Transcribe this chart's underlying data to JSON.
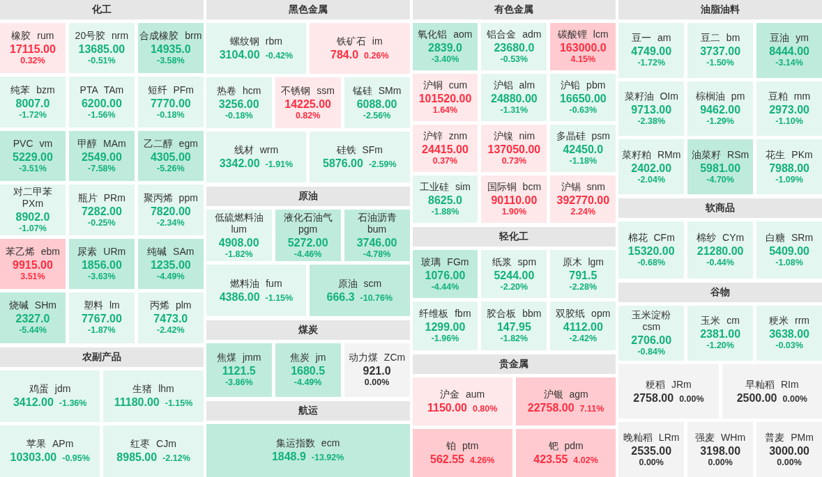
{
  "chart_data": [
    {
      "type": "other",
      "title": "化工",
      "categories": [
        "橡胶 rum",
        "20号胶 nrm",
        "合成橡胶 brm",
        "纯苯 bzm",
        "PTA TAm",
        "短纤 PFm",
        "PVC vm",
        "甲醇 MAm",
        "乙二醇 egm",
        "对二甲苯 PXm",
        "瓶片 PRm",
        "聚丙烯 ppm",
        "苯乙烯 ebm",
        "尿素 URm",
        "纯碱 SAm",
        "烧碱 SHm",
        "塑料 lm",
        "丙烯 plm"
      ],
      "series": [
        {
          "values": [
            17115,
            13685,
            14935,
            8007,
            6200,
            7770,
            5229,
            2549,
            4305,
            8902,
            7282,
            7820,
            9915,
            1856,
            1235,
            2327,
            7767,
            7473
          ],
          "value_labels": [
            "17115.00",
            "13685.00",
            "14935.0",
            "8007.0",
            "6200.00",
            "7770.00",
            "5229.00",
            "2549.00",
            "4305.00",
            "8902.0",
            "7282.00",
            "7820.00",
            "9915.00",
            "1856.00",
            "1235.00",
            "2327.0",
            "7767.00",
            "7473.0"
          ],
          "colors": [
            "#ffe8ea",
            "#e3f6ef",
            "#bfebdc",
            "#e3f6ef",
            "#e3f6ef",
            "#e3f6ef",
            "#bfebdc",
            "#bfebdc",
            "#bfebdc",
            "#e3f6ef",
            "#e3f6ef",
            "#e3f6ef",
            "#ffcbd0",
            "#bfebdc",
            "#bfebdc",
            "#bfebdc",
            "#e3f6ef",
            "#e3f6ef"
          ]
        },
        {
          "values": [
            0.32,
            -0.51,
            -3.58,
            -1.72,
            -1.56,
            -0.18,
            -3.51,
            -7.58,
            -5.26,
            -1.07,
            -0.25,
            -2.34,
            3.51,
            -3.63,
            -4.49,
            -5.44,
            -1.87,
            -2.42
          ],
          "value_labels": [
            "0.32%",
            "-0.51%",
            "-3.58%",
            "-1.72%",
            "-1.56%",
            "-0.18%",
            "-3.51%",
            "-7.58%",
            "-5.26%",
            "-1.07%",
            "-0.25%",
            "-2.34%",
            "3.51%",
            "-3.63%",
            "-4.49%",
            "-5.44%",
            "-1.87%",
            "-2.42%"
          ]
        }
      ]
    },
    {
      "type": "other",
      "title": "农副产品",
      "categories": [
        "鸡蛋 jdm",
        "生猪 lhm",
        "苹果 APm",
        "红枣 CJm"
      ],
      "series": [
        {
          "values": [
            3412,
            11180,
            10303,
            8985
          ],
          "value_labels": [
            "3412.00",
            "11180.00",
            "10303.00",
            "8985.00"
          ],
          "colors": [
            "#e3f6ef",
            "#e3f6ef",
            "#e3f6ef",
            "#e3f6ef"
          ]
        },
        {
          "values": [
            -1.36,
            -1.15,
            -0.95,
            -2.12
          ],
          "value_labels": [
            "-1.36%",
            "-1.15%",
            "-0.95%",
            "-2.12%"
          ]
        }
      ]
    },
    {
      "type": "other",
      "title": "黑色金属",
      "categories": [
        "螺纹钢 rbm",
        "铁矿石 im",
        "热卷 hcm",
        "不锈钢 ssm",
        "锰硅 SMm",
        "线材 wrm",
        "硅铁 SFm"
      ],
      "series": [
        {
          "values": [
            3104,
            784,
            3256,
            14225,
            6088,
            3342,
            5876
          ],
          "value_labels": [
            "3104.00",
            "784.0",
            "3256.00",
            "14225.00",
            "6088.00",
            "3342.00",
            "5876.00"
          ],
          "colors": [
            "#e3f6ef",
            "#ffe8ea",
            "#e3f6ef",
            "#ffe8ea",
            "#e3f6ef",
            "#e3f6ef",
            "#e3f6ef"
          ]
        },
        {
          "values": [
            -0.42,
            0.26,
            -0.18,
            0.82,
            -2.56,
            -1.91,
            -2.59
          ],
          "value_labels": [
            "-0.42%",
            "0.26%",
            "-0.18%",
            "0.82%",
            "-2.56%",
            "-1.91%",
            "-2.59%"
          ]
        }
      ]
    },
    {
      "type": "other",
      "title": "原油",
      "categories": [
        "低硫燃料油 lum",
        "液化石油气 pgm",
        "石油沥青 bum",
        "燃料油 fum",
        "原油 scm"
      ],
      "series": [
        {
          "values": [
            4908,
            5272,
            3746,
            4386,
            666.3
          ],
          "value_labels": [
            "4908.00",
            "5272.00",
            "3746.00",
            "4386.00",
            "666.3"
          ],
          "colors": [
            "#e3f6ef",
            "#bfebdc",
            "#bfebdc",
            "#e3f6ef",
            "#bfebdc"
          ]
        },
        {
          "values": [
            -1.82,
            -4.46,
            -4.78,
            -1.15,
            -10.76
          ],
          "value_labels": [
            "-1.82%",
            "-4.46%",
            "-4.78%",
            "-1.15%",
            "-10.76%"
          ]
        }
      ]
    },
    {
      "type": "other",
      "title": "煤炭",
      "categories": [
        "焦煤 jmm",
        "焦炭 jm",
        "动力煤 ZCm"
      ],
      "series": [
        {
          "values": [
            1121.5,
            1680.5,
            921
          ],
          "value_labels": [
            "1121.5",
            "1680.5",
            "921.0"
          ],
          "colors": [
            "#bfebdc",
            "#bfebdc",
            "#f3f3f3"
          ]
        },
        {
          "values": [
            -3.86,
            -4.49,
            0
          ],
          "value_labels": [
            "-3.86%",
            "-4.49%",
            "0.00%"
          ]
        }
      ]
    },
    {
      "type": "other",
      "title": "航运",
      "categories": [
        "集运指数 ecm"
      ],
      "series": [
        {
          "values": [
            1848.9
          ],
          "value_labels": [
            "1848.9"
          ],
          "colors": [
            "#bfebdc"
          ]
        },
        {
          "values": [
            -13.92
          ],
          "value_labels": [
            "-13.92%"
          ]
        }
      ]
    },
    {
      "type": "other",
      "title": "有色金属",
      "categories": [
        "氧化铝 aom",
        "铝合金 adm",
        "碳酸锂 lcm",
        "沪铜 cum",
        "沪铝 alm",
        "沪铅 pbm",
        "沪锌 znm",
        "沪镍 nim",
        "多晶硅 psm",
        "工业硅 sim",
        "国际铜 bcm",
        "沪锡 snm"
      ],
      "series": [
        {
          "values": [
            2839,
            23680,
            163000,
            101520,
            24880,
            16650,
            24415,
            137050,
            42450,
            8625,
            90110,
            392770
          ],
          "value_labels": [
            "2839.0",
            "23680.0",
            "163000.0",
            "101520.00",
            "24880.00",
            "16650.00",
            "24415.00",
            "137050.00",
            "42450.0",
            "8625.0",
            "90110.00",
            "392770.00"
          ],
          "colors": [
            "#bfebdc",
            "#e3f6ef",
            "#ffcbd0",
            "#ffe8ea",
            "#e3f6ef",
            "#e3f6ef",
            "#ffe8ea",
            "#ffe8ea",
            "#e3f6ef",
            "#e3f6ef",
            "#ffe8ea",
            "#ffe8ea"
          ]
        },
        {
          "values": [
            -3.4,
            -0.53,
            4.15,
            1.64,
            -1.31,
            -0.63,
            0.37,
            0.73,
            -1.18,
            -1.88,
            1.9,
            2.24
          ],
          "value_labels": [
            "-3.40%",
            "-0.53%",
            "4.15%",
            "1.64%",
            "-1.31%",
            "-0.63%",
            "0.37%",
            "0.73%",
            "-1.18%",
            "-1.88%",
            "1.90%",
            "2.24%"
          ]
        }
      ]
    },
    {
      "type": "other",
      "title": "轻化工",
      "categories": [
        "玻璃 FGm",
        "纸浆 spm",
        "原木 lgm",
        "纤维板 fbm",
        "胶合板 bbm",
        "双胶纸 opm"
      ],
      "series": [
        {
          "values": [
            1076,
            5244,
            791.5,
            1299,
            147.95,
            4112
          ],
          "value_labels": [
            "1076.00",
            "5244.00",
            "791.5",
            "1299.00",
            "147.95",
            "4112.00"
          ],
          "colors": [
            "#bfebdc",
            "#e3f6ef",
            "#e3f6ef",
            "#e3f6ef",
            "#e3f6ef",
            "#e3f6ef"
          ]
        },
        {
          "values": [
            -4.44,
            -2.2,
            -2.28,
            -1.96,
            -1.82,
            -2.42
          ],
          "value_labels": [
            "-4.44%",
            "-2.20%",
            "-2.28%",
            "-1.96%",
            "-1.82%",
            "-2.42%"
          ]
        }
      ]
    },
    {
      "type": "other",
      "title": "贵金属",
      "categories": [
        "沪金 aum",
        "沪银 agm",
        "铂 ptm",
        "钯 pdm"
      ],
      "series": [
        {
          "values": [
            1150,
            22758,
            562.55,
            423.55
          ],
          "value_labels": [
            "1150.00",
            "22758.00",
            "562.55",
            "423.55"
          ],
          "colors": [
            "#ffe8ea",
            "#ffcbd0",
            "#ffcbd0",
            "#ffcbd0"
          ]
        },
        {
          "values": [
            0.8,
            7.11,
            4.26,
            4.02
          ],
          "value_labels": [
            "0.80%",
            "7.11%",
            "4.26%",
            "4.02%"
          ]
        }
      ]
    },
    {
      "type": "other",
      "title": "油脂油料",
      "categories": [
        "豆一 am",
        "豆二 bm",
        "豆油 ym",
        "菜籽油 OIm",
        "棕榈油 pm",
        "豆粕 mm",
        "菜籽粕 RMm",
        "油菜籽 RSm",
        "花生 PKm"
      ],
      "series": [
        {
          "values": [
            4749,
            3737,
            8444,
            9713,
            9462,
            2973,
            2402,
            5981,
            7988
          ],
          "value_labels": [
            "4749.00",
            "3737.00",
            "8444.00",
            "9713.00",
            "9462.00",
            "2973.00",
            "2402.00",
            "5981.00",
            "7988.00"
          ],
          "colors": [
            "#e3f6ef",
            "#e3f6ef",
            "#bfebdc",
            "#e3f6ef",
            "#e3f6ef",
            "#e3f6ef",
            "#e3f6ef",
            "#bfebdc",
            "#e3f6ef"
          ]
        },
        {
          "values": [
            -1.72,
            -1.5,
            -3.14,
            -2.38,
            -1.29,
            -1.1,
            -2.04,
            -4.7,
            -1.09
          ],
          "value_labels": [
            "-1.72%",
            "-1.50%",
            "-3.14%",
            "-2.38%",
            "-1.29%",
            "-1.10%",
            "-2.04%",
            "-4.70%",
            "-1.09%"
          ]
        }
      ]
    },
    {
      "type": "other",
      "title": "软商品",
      "categories": [
        "棉花 CFm",
        "棉纱 CYm",
        "白糖 SRm"
      ],
      "series": [
        {
          "values": [
            15320,
            21280,
            5409
          ],
          "value_labels": [
            "15320.00",
            "21280.00",
            "5409.00"
          ],
          "colors": [
            "#e3f6ef",
            "#e3f6ef",
            "#e3f6ef"
          ]
        },
        {
          "values": [
            -0.68,
            -0.44,
            -1.08
          ],
          "value_labels": [
            "-0.68%",
            "-0.44%",
            "-1.08%"
          ]
        }
      ]
    },
    {
      "type": "other",
      "title": "谷物",
      "categories": [
        "玉米淀粉 csm",
        "玉米 cm",
        "粳米 rrm",
        "粳稻 JRm",
        "早籼稻 RIm",
        "晚籼稻 LRm",
        "强麦 WHm",
        "普麦 PMm"
      ],
      "series": [
        {
          "values": [
            2706,
            2381,
            3638,
            2758,
            2500,
            2535,
            3198,
            3000
          ],
          "value_labels": [
            "2706.00",
            "2381.00",
            "3638.00",
            "2758.00",
            "2500.00",
            "2535.00",
            "3198.00",
            "3000.00"
          ],
          "colors": [
            "#e3f6ef",
            "#e3f6ef",
            "#e3f6ef",
            "#f3f3f3",
            "#f3f3f3",
            "#f3f3f3",
            "#f3f3f3",
            "#f3f3f3"
          ]
        },
        {
          "values": [
            -0.84,
            -1.2,
            -0.03,
            0,
            0,
            0,
            0,
            0
          ],
          "value_labels": [
            "-0.84%",
            "-1.20%",
            "-0.03%",
            "0.00%",
            "0.00%",
            "0.00%",
            "0.00%",
            "0.00%"
          ]
        }
      ]
    }
  ]
}
